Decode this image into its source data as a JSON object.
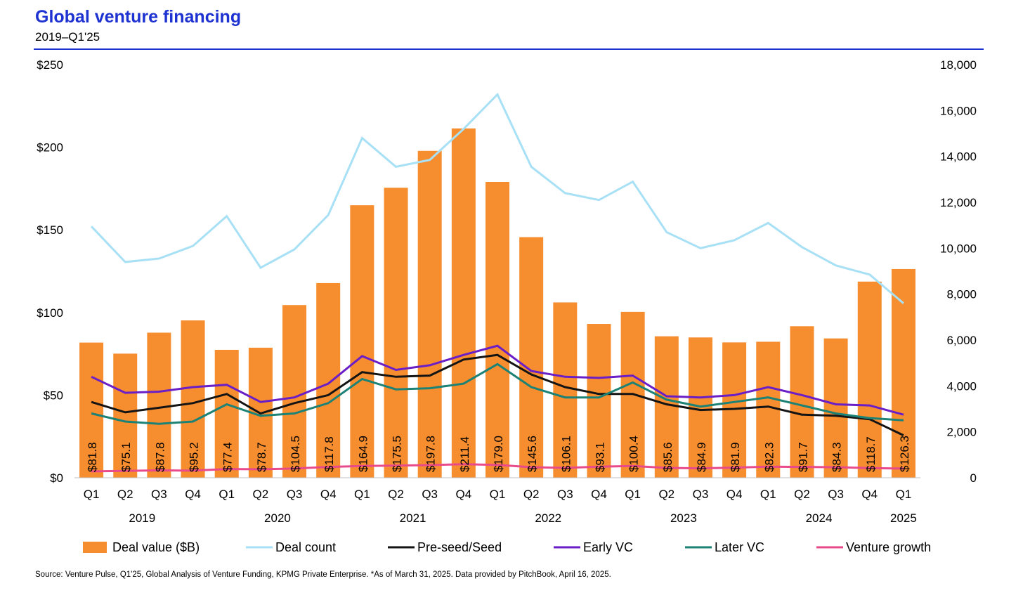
{
  "title": "Global venture financing",
  "subtitle": "2019–Q1'25",
  "source_note": "Source: Venture Pulse, Q1'25, Global Analysis of Venture Funding, KPMG Private Enterprise. *As of March 31, 2025. Data provided by PitchBook, April 16, 2025.",
  "chart_data": {
    "type": "bar",
    "categories": [
      "Q1",
      "Q2",
      "Q3",
      "Q4",
      "Q1",
      "Q2",
      "Q3",
      "Q4",
      "Q1",
      "Q2",
      "Q3",
      "Q4",
      "Q1",
      "Q2",
      "Q3",
      "Q4",
      "Q1",
      "Q2",
      "Q3",
      "Q4",
      "Q1",
      "Q2",
      "Q3",
      "Q4",
      "Q1"
    ],
    "year_groups": [
      {
        "label": "2019",
        "start": 0,
        "end": 3
      },
      {
        "label": "2020",
        "start": 4,
        "end": 7
      },
      {
        "label": "2021",
        "start": 8,
        "end": 11
      },
      {
        "label": "2022",
        "start": 12,
        "end": 15
      },
      {
        "label": "2023",
        "start": 16,
        "end": 19
      },
      {
        "label": "2024",
        "start": 20,
        "end": 23
      },
      {
        "label": "2025",
        "start": 24,
        "end": 24
      }
    ],
    "bars": {
      "name": "Deal value ($B)",
      "color": "#f68d2e",
      "values": [
        81.8,
        75.1,
        87.8,
        95.2,
        77.4,
        78.7,
        104.5,
        117.8,
        164.9,
        175.5,
        197.8,
        211.4,
        179.0,
        145.6,
        106.1,
        93.1,
        100.4,
        85.6,
        84.9,
        81.9,
        82.3,
        91.7,
        84.3,
        118.7,
        126.3
      ],
      "labels": [
        "$81.8",
        "$75.1",
        "$87.8",
        "$95.2",
        "$77.4",
        "$78.7",
        "$104.5",
        "$117.8",
        "$164.9",
        "$175.5",
        "$197.8",
        "$211.4",
        "$179.0",
        "$145.6",
        "$106.1",
        "$93.1",
        "$100.4",
        "$85.6",
        "$84.9",
        "$81.9",
        "$82.3",
        "$91.7",
        "$84.3",
        "$118.7",
        "$126.3"
      ]
    },
    "lines": [
      {
        "name": "Deal count",
        "color": "#a8e0f5",
        "values": [
          10950,
          9400,
          9550,
          10100,
          11400,
          9150,
          9950,
          11450,
          14800,
          13550,
          13850,
          15200,
          16700,
          13550,
          12400,
          12100,
          12900,
          10700,
          10000,
          10350,
          11100,
          10050,
          9250,
          8850,
          7600
        ]
      },
      {
        "name": "Pre-seed/Seed",
        "color": "#141414",
        "values": [
          3300,
          2850,
          3050,
          3250,
          3650,
          2800,
          3250,
          3600,
          4600,
          4400,
          4450,
          5150,
          5350,
          4500,
          3950,
          3650,
          3650,
          3200,
          2950,
          3000,
          3100,
          2750,
          2700,
          2550,
          1850
        ]
      },
      {
        "name": "Early VC",
        "color": "#6a1ec8",
        "values": [
          4400,
          3700,
          3750,
          3950,
          4050,
          3300,
          3500,
          4100,
          5300,
          4700,
          4900,
          5350,
          5750,
          4650,
          4400,
          4350,
          4450,
          3550,
          3500,
          3600,
          3950,
          3600,
          3200,
          3150,
          2750
        ]
      },
      {
        "name": "Later VC",
        "color": "#1c8276",
        "values": [
          2800,
          2450,
          2350,
          2450,
          3200,
          2700,
          2800,
          3250,
          4300,
          3850,
          3900,
          4100,
          4950,
          3950,
          3500,
          3500,
          4150,
          3400,
          3100,
          3300,
          3500,
          3150,
          2800,
          2600,
          2500
        ]
      },
      {
        "name": "Venture growth",
        "color": "#e94b8a",
        "values": [
          280,
          300,
          320,
          310,
          380,
          370,
          400,
          470,
          510,
          530,
          550,
          590,
          560,
          460,
          430,
          480,
          510,
          430,
          410,
          440,
          480,
          470,
          460,
          420,
          400
        ]
      }
    ],
    "y_left": {
      "ylim": [
        0,
        250
      ],
      "ticks": [
        "$0",
        "$50",
        "$100",
        "$150",
        "$200",
        "$250"
      ],
      "tick_values": [
        0,
        50,
        100,
        150,
        200,
        250
      ]
    },
    "y_right": {
      "ylim": [
        0,
        18000
      ],
      "ticks": [
        "0",
        "2,000",
        "4,000",
        "6,000",
        "8,000",
        "10,000",
        "12,000",
        "14,000",
        "16,000",
        "18,000"
      ],
      "tick_values": [
        0,
        2000,
        4000,
        6000,
        8000,
        10000,
        12000,
        14000,
        16000,
        18000
      ]
    },
    "grid": false,
    "legend_position": "bottom"
  }
}
